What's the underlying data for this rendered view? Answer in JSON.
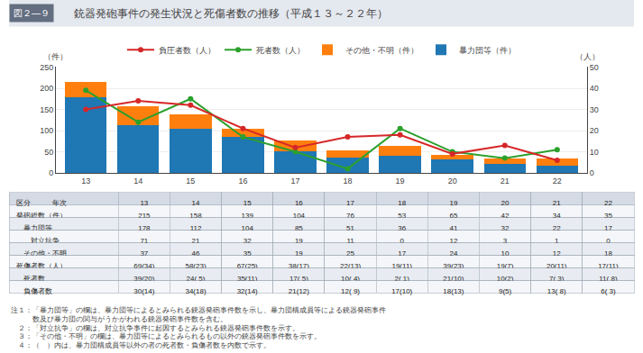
{
  "chart_data": {
    "type": "bar",
    "title": "銃器発砲事件の発生状況と死傷者数の推移（平成１３～２２年）",
    "figure_label": "図２―９",
    "categories": [
      "13",
      "14",
      "15",
      "16",
      "17",
      "18",
      "19",
      "20",
      "21",
      "22"
    ],
    "series": [
      {
        "name": "暴力団等（件）",
        "type": "bar",
        "values": [
          178,
          112,
          104,
          85,
          51,
          36,
          41,
          32,
          22,
          17
        ]
      },
      {
        "name": "その他・不明（件）",
        "type": "bar",
        "values": [
          37,
          46,
          35,
          19,
          25,
          17,
          24,
          10,
          12,
          18
        ]
      },
      {
        "name": "死者数（人）",
        "type": "line",
        "axis": "y2",
        "marker": "circle",
        "values": [
          39,
          24,
          35,
          17,
          10,
          2,
          21,
          10,
          7,
          11
        ]
      },
      {
        "name": "負圧者数（人）",
        "type": "line",
        "axis": "y2",
        "marker": "circle",
        "values": [
          30,
          34,
          32,
          21,
          12,
          17,
          18,
          9,
          13,
          6
        ]
      }
    ],
    "stacked": true,
    "ylabel": "（件）",
    "y2label": "（人）",
    "ylim": [
      0,
      250
    ],
    "yticks": [
      0,
      50,
      100,
      150,
      200,
      250
    ],
    "y2lim": [
      0,
      50
    ],
    "y2ticks": [
      0,
      10,
      20,
      30,
      40,
      50
    ],
    "grid": true,
    "legend": "top",
    "table": {
      "header": [
        "区分　　　年次",
        "13",
        "14",
        "15",
        "16",
        "17",
        "18",
        "19",
        "20",
        "21",
        "22"
      ],
      "rows": [
        {
          "label": "発砲総数（件）",
          "values": [
            "215",
            "158",
            "139",
            "104",
            "76",
            "53",
            "65",
            "42",
            "34",
            "35"
          ]
        },
        {
          "label": "　暴力団等",
          "values": [
            "178",
            "112",
            "104",
            "85",
            "51",
            "36",
            "41",
            "32",
            "22",
            "17"
          ]
        },
        {
          "label": "　　対立抗争",
          "values": [
            "71",
            "21",
            "32",
            "19",
            "11",
            "0",
            "12",
            "3",
            "1",
            "0"
          ]
        },
        {
          "label": "　その他・不明",
          "values": [
            "37",
            "46",
            "35",
            "19",
            "25",
            "17",
            "24",
            "10",
            "12",
            "18"
          ]
        },
        {
          "label": "死傷者数（人）",
          "values": [
            "69(34)",
            "58(23)",
            "67(25)",
            "38(17)",
            "22(13)",
            "19(11)",
            "39(23)",
            "19(7)",
            "20(11)",
            "17(11)"
          ]
        },
        {
          "label": "　死者数",
          "values": [
            "39(20)",
            "24( 5)",
            "35(11)",
            "17( 5)",
            "10( 4)",
            "2( 1)",
            "21(10)",
            "10(2)",
            "7( 3)",
            "11( 8)"
          ]
        },
        {
          "label": "　負傷者数",
          "values": [
            "30(14)",
            "34(18)",
            "32(14)",
            "21(12)",
            "12( 9)",
            "17(10)",
            "18(13)",
            "9(5)",
            "13( 8)",
            "6( 3)"
          ]
        }
      ]
    },
    "notes": [
      "注１：「暴力団等」の欄は、暴力団等によるとみられる銃器発砲事件数を示し、暴力団構成員等による銃器発砲事件",
      "　　　数及び暴力団の関与がうかがわれる銃器発砲事件数を含む。",
      "　２：「対立抗争」の欄は、対立抗争事件に起因するとみられる銃器発砲事件数を示す。",
      "　３：「その他・不明」の欄は、暴力団等によるとみられるもの以外の銃器発砲事件数を示す。",
      "　４：（　）内は、暴力団構成員等以外の者の死者数・負傷者数を内数で示す。"
    ]
  }
}
